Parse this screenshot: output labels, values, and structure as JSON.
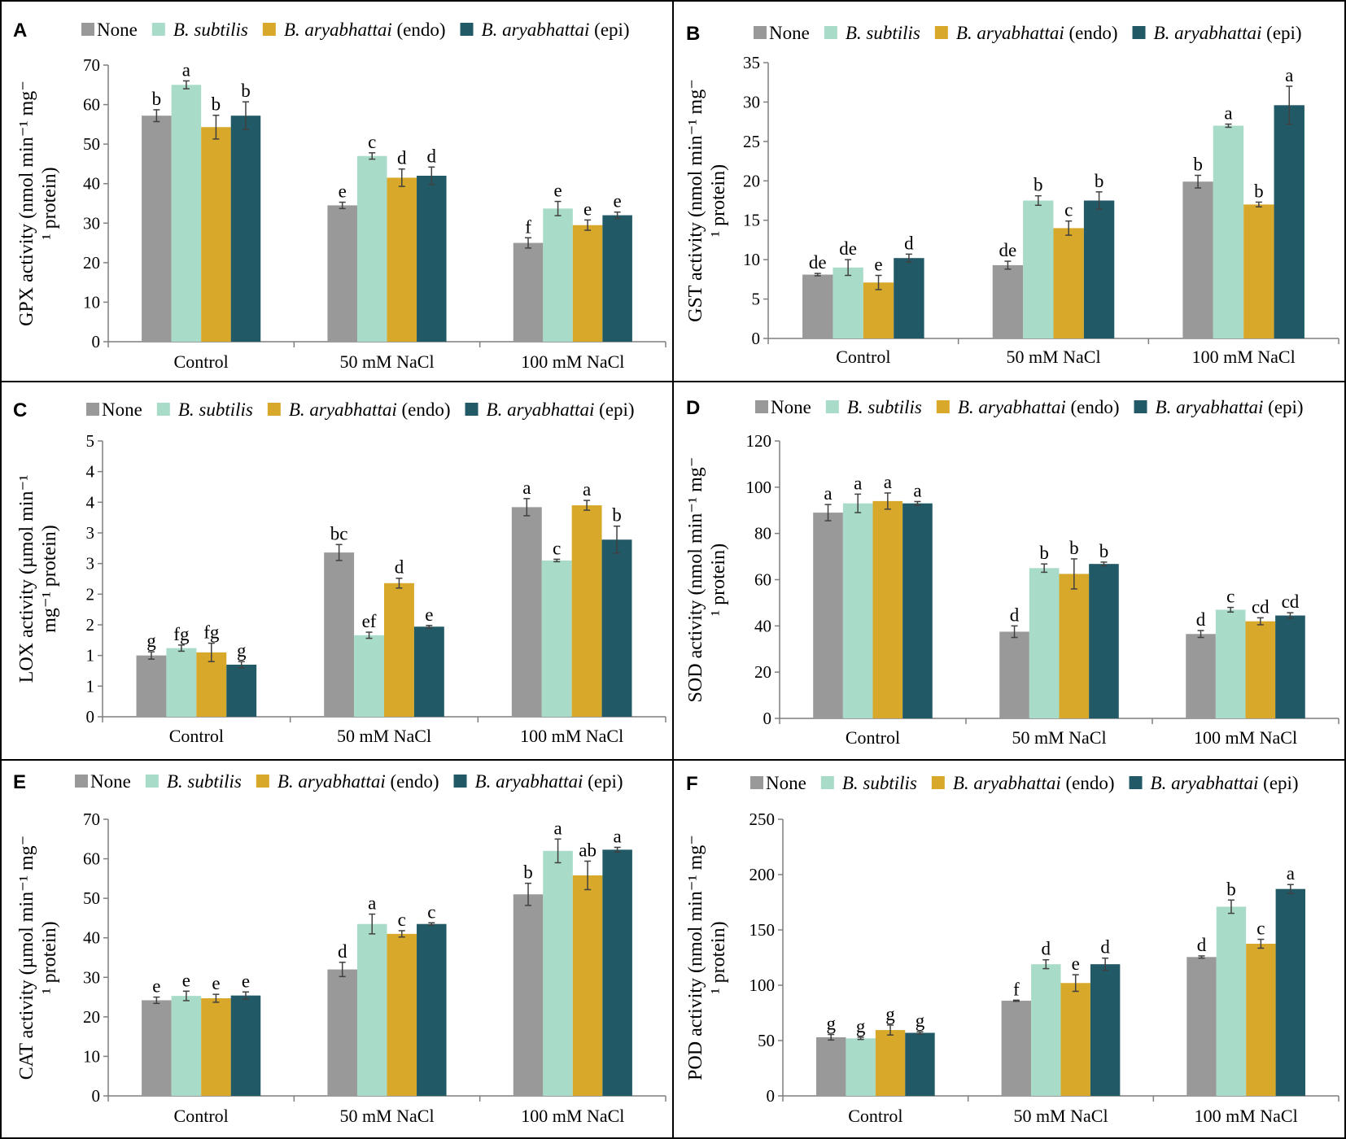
{
  "colors": {
    "series": [
      "#999999",
      "#a8dcc8",
      "#d8a82a",
      "#215a66"
    ],
    "axis": "#7f7f7f",
    "frame": "#000000",
    "error_bar": "#404040"
  },
  "legend": {
    "entries": [
      {
        "name": "None",
        "italic": "",
        "suffix": ""
      },
      {
        "name": "B. subtilis",
        "italic": "B. subtilis",
        "suffix": ""
      },
      {
        "name": "B. aryabhattai (endo)",
        "italic": "B. aryabhattai",
        "suffix": " (endo)"
      },
      {
        "name": "B. aryabhattai (epi)",
        "italic": "B. aryabhattai",
        "suffix": " (epi)"
      }
    ]
  },
  "chart_data": [
    {
      "panel": "A",
      "type": "bar",
      "categories": [
        "Control",
        "50 mM NaCl",
        "100 mM NaCl"
      ],
      "ylabel_lines": [
        "GPX activity (nmol min⁻¹ mg⁻",
        "¹ protein)"
      ],
      "ylim": [
        0,
        70
      ],
      "yticks": [
        0,
        10,
        20,
        30,
        40,
        50,
        60,
        70
      ],
      "ytick_labels": [
        "0",
        "10",
        "20",
        "30",
        "40",
        "50",
        "60",
        "70"
      ],
      "series": [
        {
          "name": "None",
          "values": [
            57.2,
            34.5,
            25.0
          ],
          "errors": [
            1.5,
            0.8,
            1.3
          ],
          "labels": [
            "b",
            "e",
            "f"
          ]
        },
        {
          "name": "B. subtilis",
          "values": [
            65.0,
            47.0,
            33.7
          ],
          "errors": [
            1.0,
            0.8,
            1.8
          ],
          "labels": [
            "a",
            "c",
            "e"
          ]
        },
        {
          "name": "B. aryabhattai (endo)",
          "values": [
            54.3,
            41.5,
            29.5
          ],
          "errors": [
            3.0,
            2.2,
            1.3
          ],
          "labels": [
            "b",
            "d",
            "e"
          ]
        },
        {
          "name": "B. aryabhattai (epi)",
          "values": [
            57.2,
            42.0,
            32.0
          ],
          "errors": [
            3.5,
            2.2,
            0.8
          ],
          "labels": [
            "b",
            "d",
            "e"
          ]
        }
      ]
    },
    {
      "panel": "B",
      "type": "bar",
      "categories": [
        "Control",
        "50 mM NaCl",
        "100 mM NaCl"
      ],
      "ylabel_lines": [
        "GST activity (nmol min⁻¹ mg⁻",
        "¹ protein)"
      ],
      "ylim": [
        0,
        35
      ],
      "yticks": [
        0,
        5,
        10,
        15,
        20,
        25,
        30,
        35
      ],
      "ytick_labels": [
        "0",
        "5",
        "10",
        "15",
        "20",
        "25",
        "30",
        "35"
      ],
      "series": [
        {
          "name": "None",
          "values": [
            8.1,
            9.3,
            19.9
          ],
          "errors": [
            0.15,
            0.5,
            0.8
          ],
          "labels": [
            "de",
            "de",
            "b"
          ]
        },
        {
          "name": "B. subtilis",
          "values": [
            9.0,
            17.5,
            27.0
          ],
          "errors": [
            1.0,
            0.6,
            0.2
          ],
          "labels": [
            "de",
            "b",
            "a"
          ]
        },
        {
          "name": "B. aryabhattai (endo)",
          "values": [
            7.1,
            14.0,
            17.0
          ],
          "errors": [
            0.9,
            0.9,
            0.3
          ],
          "labels": [
            "e",
            "c",
            "b"
          ]
        },
        {
          "name": "B. aryabhattai (epi)",
          "values": [
            10.2,
            17.5,
            29.6
          ],
          "errors": [
            0.5,
            1.1,
            2.4
          ],
          "labels": [
            "d",
            "b",
            "a"
          ]
        }
      ]
    },
    {
      "panel": "C",
      "type": "bar",
      "categories": [
        "Control",
        "50 mM NaCl",
        "100 mM NaCl"
      ],
      "ylabel_lines": [
        "LOX activity (µmol min⁻¹",
        "mg⁻¹ protein)"
      ],
      "ylim": [
        0,
        4.5
      ],
      "yticks": [
        0,
        0.5,
        1,
        1.5,
        2,
        2.5,
        3,
        3.5,
        4,
        4.5
      ],
      "ytick_labels": [
        "0",
        "1",
        "1",
        "2",
        "2",
        "3",
        "3",
        "4",
        "4",
        "5"
      ],
      "series": [
        {
          "name": "None",
          "values": [
            1.0,
            2.68,
            3.42
          ],
          "errors": [
            0.06,
            0.13,
            0.14
          ],
          "labels": [
            "g",
            "bc",
            "a"
          ]
        },
        {
          "name": "B. subtilis",
          "values": [
            1.12,
            1.33,
            2.55
          ],
          "errors": [
            0.05,
            0.05,
            0.02
          ],
          "labels": [
            "fg",
            "ef",
            "c"
          ]
        },
        {
          "name": "B. aryabhattai (endo)",
          "values": [
            1.05,
            2.18,
            3.45
          ],
          "errors": [
            0.15,
            0.08,
            0.08
          ],
          "labels": [
            "fg",
            "d",
            "a"
          ]
        },
        {
          "name": "B. aryabhattai (epi)",
          "values": [
            0.85,
            1.47,
            2.89
          ],
          "errors": [
            0.05,
            0.02,
            0.22
          ],
          "labels": [
            "g",
            "e",
            "b"
          ]
        }
      ]
    },
    {
      "panel": "D",
      "type": "bar",
      "categories": [
        "Control",
        "50 mM NaCl",
        "100 mM NaCl"
      ],
      "ylabel_lines": [
        "SOD activity (nmol min⁻¹ mg⁻",
        "¹ protein)"
      ],
      "ylim": [
        0,
        120
      ],
      "yticks": [
        0,
        20,
        40,
        60,
        80,
        100,
        120
      ],
      "ytick_labels": [
        "0",
        "20",
        "40",
        "60",
        "80",
        "100",
        "120"
      ],
      "series": [
        {
          "name": "None",
          "values": [
            89.0,
            37.5,
            36.5
          ],
          "errors": [
            3.5,
            2.5,
            1.5
          ],
          "labels": [
            "a",
            "d",
            "d"
          ]
        },
        {
          "name": "B. subtilis",
          "values": [
            93.0,
            65.0,
            47.0
          ],
          "errors": [
            4.0,
            1.8,
            1.0
          ],
          "labels": [
            "a",
            "b",
            "c"
          ]
        },
        {
          "name": "B. aryabhattai (endo)",
          "values": [
            94.0,
            62.5,
            42.0
          ],
          "errors": [
            3.5,
            6.5,
            1.5
          ],
          "labels": [
            "a",
            "b",
            "cd"
          ]
        },
        {
          "name": "B. aryabhattai (epi)",
          "values": [
            93.0,
            66.8,
            44.5
          ],
          "errors": [
            0.8,
            0.8,
            1.2
          ],
          "labels": [
            "a",
            "b",
            "cd"
          ]
        }
      ]
    },
    {
      "panel": "E",
      "type": "bar",
      "categories": [
        "Control",
        "50 mM NaCl",
        "100 mM NaCl"
      ],
      "ylabel_lines": [
        "CAT activity (µmol min⁻¹ mg⁻",
        "¹ protein)"
      ],
      "ylim": [
        0,
        70
      ],
      "yticks": [
        0,
        10,
        20,
        30,
        40,
        50,
        60,
        70
      ],
      "ytick_labels": [
        "0",
        "10",
        "20",
        "30",
        "40",
        "50",
        "60",
        "70"
      ],
      "series": [
        {
          "name": "None",
          "values": [
            24.2,
            32.0,
            51.0
          ],
          "errors": [
            0.8,
            1.8,
            2.8
          ],
          "labels": [
            "e",
            "d",
            "b"
          ]
        },
        {
          "name": "B. subtilis",
          "values": [
            25.3,
            43.5,
            62.0
          ],
          "errors": [
            1.2,
            2.5,
            3.0
          ],
          "labels": [
            "e",
            "a",
            "a"
          ]
        },
        {
          "name": "B. aryabhattai (endo)",
          "values": [
            24.7,
            41.0,
            55.8
          ],
          "errors": [
            1.0,
            0.8,
            3.6
          ],
          "labels": [
            "e",
            "c",
            "ab"
          ]
        },
        {
          "name": "B. aryabhattai (epi)",
          "values": [
            25.4,
            43.5,
            62.3
          ],
          "errors": [
            0.9,
            0.3,
            0.6
          ],
          "labels": [
            "e",
            "c",
            "a"
          ]
        }
      ]
    },
    {
      "panel": "F",
      "type": "bar",
      "categories": [
        "Control",
        "50 mM NaCl",
        "100 mM NaCl"
      ],
      "ylabel_lines": [
        "POD activity (nmol min⁻¹ mg⁻",
        "¹ protein)"
      ],
      "ylim": [
        0,
        250
      ],
      "yticks": [
        0,
        50,
        100,
        150,
        200,
        250
      ],
      "ytick_labels": [
        "0",
        "50",
        "100",
        "150",
        "200",
        "250"
      ],
      "series": [
        {
          "name": "None",
          "values": [
            53.0,
            86.0,
            125.5
          ],
          "errors": [
            2.5,
            0.5,
            1.0
          ],
          "labels": [
            "g",
            "f",
            "d"
          ]
        },
        {
          "name": "B. subtilis",
          "values": [
            52.0,
            119.0,
            171.0
          ],
          "errors": [
            1.0,
            4.0,
            6.0
          ],
          "labels": [
            "g",
            "d",
            "b"
          ]
        },
        {
          "name": "B. aryabhattai (endo)",
          "values": [
            59.5,
            102.0,
            137.5
          ],
          "errors": [
            4.5,
            7.5,
            4.0
          ],
          "labels": [
            "g",
            "e",
            "c"
          ]
        },
        {
          "name": "B. aryabhattai (epi)",
          "values": [
            57.0,
            119.0,
            187.0
          ],
          "errors": [
            1.0,
            5.5,
            4.0
          ],
          "labels": [
            "g",
            "d",
            "a"
          ]
        }
      ]
    }
  ]
}
